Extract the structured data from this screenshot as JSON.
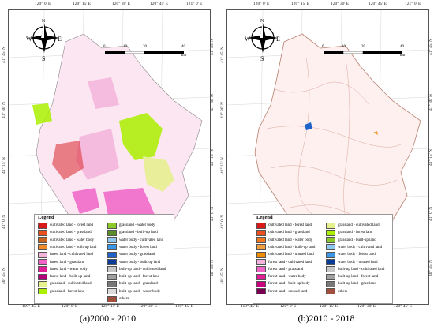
{
  "panels": [
    {
      "id": "a",
      "caption": "(a)2000 - 2010",
      "top_coords": [
        "120° 0' E",
        "120° 15' E",
        "120° 30' E",
        "120° 45' E",
        "121° 0' E"
      ],
      "bottom_coords": [
        "119° 45' E",
        "120° 0' E",
        "120° 15' E",
        "120° 30' E",
        "120° 45' E"
      ],
      "left_coords": [
        "41° 45' N",
        "41° 30' N",
        "41° 15' N",
        "41° 0' N",
        "40° 45' N"
      ],
      "right_coords": [
        "41° 45' N",
        "41° 30' N",
        "41° 15' N",
        "41° 0' N",
        "40° 45' N"
      ],
      "scale": {
        "ticks": [
          "0",
          "10",
          "20",
          "40"
        ],
        "unit": "km"
      },
      "legend_title": "Legend",
      "legend_col1": [
        {
          "label": "cultivated land - forest land",
          "color": "#d7191c"
        },
        {
          "label": "cultivated land - grassland",
          "color": "#e8501e"
        },
        {
          "label": "cultivated land - water body",
          "color": "#c8641e"
        },
        {
          "label": "cultivated land - built-up land",
          "color": "#f08c28"
        },
        {
          "label": "forest land - cultivated land",
          "color": "#f5b4dc"
        },
        {
          "label": "forest land - grassland",
          "color": "#f064c8"
        },
        {
          "label": "forest land - water body",
          "color": "#e01e96"
        },
        {
          "label": "forest land - built-up land",
          "color": "#b4007d"
        },
        {
          "label": "grassland - cultivated land",
          "color": "#e6f08c"
        },
        {
          "label": "grassland - forest land",
          "color": "#aaf000"
        }
      ],
      "legend_col2": [
        {
          "label": "grassland - water body",
          "color": "#8cc828"
        },
        {
          "label": "grassland - built-up land",
          "color": "#5a8c28"
        },
        {
          "label": "water body - cultivated land",
          "color": "#8cc8f0"
        },
        {
          "label": "water body - forest land",
          "color": "#3c96e6"
        },
        {
          "label": "water body - grassland",
          "color": "#1e64c8"
        },
        {
          "label": "water body - built-up land",
          "color": "#0a3c96"
        },
        {
          "label": "built-up land - cultivated land",
          "color": "#c8c8c8"
        },
        {
          "label": "built-up land - forest land",
          "color": "#a0a0a0"
        },
        {
          "label": "built-up land - grassland",
          "color": "#787878"
        },
        {
          "label": "built-up land - water body",
          "color": "#dcdcdc"
        },
        {
          "label": "others",
          "color": "#a0503c"
        }
      ]
    },
    {
      "id": "b",
      "caption": "(b)2010 - 2018",
      "top_coords": [
        "120° 0' E",
        "120° 15' E",
        "120° 30' E",
        "120° 45' E",
        "121° 0' E"
      ],
      "bottom_coords": [
        "119° 45' E",
        "120° 0' E",
        "120° 15' E",
        "120° 30' E",
        "120° 45' E"
      ],
      "left_coords": [
        "41° 45' N",
        "41° 30' N",
        "41° 15' N",
        "41° 0' N",
        "40° 45' N"
      ],
      "right_coords": [
        "41° 45' N",
        "41° 30' N",
        "41° 15' N",
        "41° 0' N",
        "40° 45' N"
      ],
      "scale": {
        "ticks": [
          "0",
          "10",
          "20",
          "40"
        ],
        "unit": "km"
      },
      "legend_title": "Legend",
      "legend_col1": [
        {
          "label": "cultivated land - forest land",
          "color": "#d7191c"
        },
        {
          "label": "cultivated land - grassland",
          "color": "#e8501e"
        },
        {
          "label": "cultivated land - water body",
          "color": "#f0781e"
        },
        {
          "label": "cultivated land - built-up land",
          "color": "#f0a03c"
        },
        {
          "label": "cultivated land - unused land",
          "color": "#f08c00"
        },
        {
          "label": "forest land - cultivated land",
          "color": "#f5b4dc"
        },
        {
          "label": "forest land - grassland",
          "color": "#f064c8"
        },
        {
          "label": "forest land - water body",
          "color": "#e01e96"
        },
        {
          "label": "forest land - built-up body",
          "color": "#c8007d"
        },
        {
          "label": "forest land - unused land",
          "color": "#780050"
        }
      ],
      "legend_col2": [
        {
          "label": "grassland - cultivated land",
          "color": "#e6f08c"
        },
        {
          "label": "grassland - forest land",
          "color": "#aaf000"
        },
        {
          "label": "grassland - built-up land",
          "color": "#8cc828"
        },
        {
          "label": "water body - cultivated land",
          "color": "#8cc8f0"
        },
        {
          "label": "water body - forest land",
          "color": "#3c96e6"
        },
        {
          "label": "water body - unused land",
          "color": "#0a3c96"
        },
        {
          "label": "built-up land - cultivated land",
          "color": "#c8c8c8"
        },
        {
          "label": "built-up land - forest land",
          "color": "#a0a0a0"
        },
        {
          "label": "built-up land - grassland",
          "color": "#787878"
        },
        {
          "label": "others",
          "color": "#a0503c"
        }
      ]
    }
  ]
}
